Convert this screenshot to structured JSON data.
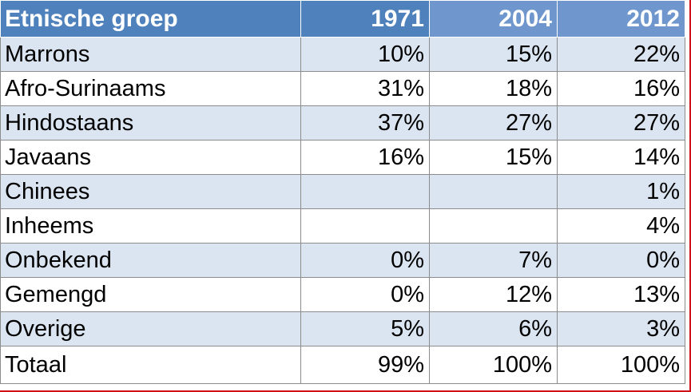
{
  "table": {
    "headers": [
      "Etnische groep",
      "1971",
      "2004",
      "2012"
    ],
    "rows": [
      {
        "group": "Marrons",
        "v1971": "10%",
        "v2004": "15%",
        "v2012": "22%"
      },
      {
        "group": "Afro-Surinaams",
        "v1971": "31%",
        "v2004": "18%",
        "v2012": "16%"
      },
      {
        "group": "Hindostaans",
        "v1971": "37%",
        "v2004": "27%",
        "v2012": "27%"
      },
      {
        "group": "Javaans",
        "v1971": "16%",
        "v2004": "15%",
        "v2012": "14%"
      },
      {
        "group": "Chinees",
        "v1971": "",
        "v2004": "",
        "v2012": "1%"
      },
      {
        "group": "Inheems",
        "v1971": "",
        "v2004": "",
        "v2012": "4%"
      },
      {
        "group": "Onbekend",
        "v1971": "0%",
        "v2004": "7%",
        "v2012": "0%"
      },
      {
        "group": "Gemengd",
        "v1971": "0%",
        "v2004": "12%",
        "v2012": "13%"
      },
      {
        "group": "Overige",
        "v1971": "5%",
        "v2004": "6%",
        "v2012": "3%"
      },
      {
        "group": "Totaal",
        "v1971": "99%",
        "v2004": "100%",
        "v2012": "100%"
      }
    ]
  },
  "colors": {
    "header_primary": "#4f81bd",
    "header_secondary": "#6f97cd",
    "band": "#dbe5f1",
    "border_accent": "#d0101a"
  }
}
